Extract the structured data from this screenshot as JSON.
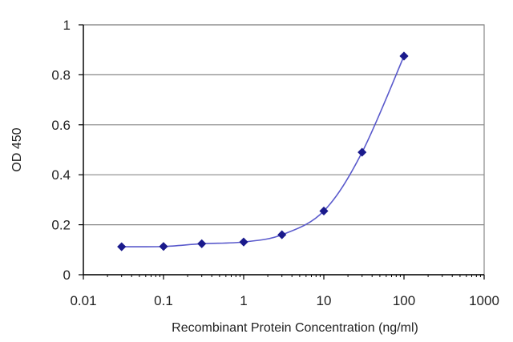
{
  "chart_data": {
    "type": "line",
    "title": "",
    "xlabel": "Recombinant Protein Concentration (ng/ml)",
    "ylabel": "OD 450",
    "x_scale": "log",
    "xlim": [
      0.01,
      1000
    ],
    "ylim": [
      0,
      1
    ],
    "x_ticks": [
      0.01,
      0.1,
      1,
      10,
      100,
      1000
    ],
    "x_tick_labels": [
      "0.01",
      "0.1",
      "1",
      "10",
      "100",
      "1000"
    ],
    "y_ticks": [
      0,
      0.2,
      0.4,
      0.6,
      0.8,
      1
    ],
    "y_tick_labels": [
      "0",
      "0.2",
      "0.4",
      "0.6",
      "0.8",
      "1"
    ],
    "grid": "horizontal",
    "legend": "none",
    "series": [
      {
        "x": [
          0.03,
          0.1,
          0.3,
          1,
          3,
          10,
          30,
          100
        ],
        "y": [
          0.112,
          0.113,
          0.124,
          0.131,
          0.16,
          0.255,
          0.49,
          0.875
        ],
        "color": "#5a5acc",
        "marker_color": "#1a1a8c",
        "marker": "diamond"
      }
    ],
    "colors": {
      "grid": "#888888",
      "frame": "#888888",
      "axis": "#000000"
    }
  }
}
